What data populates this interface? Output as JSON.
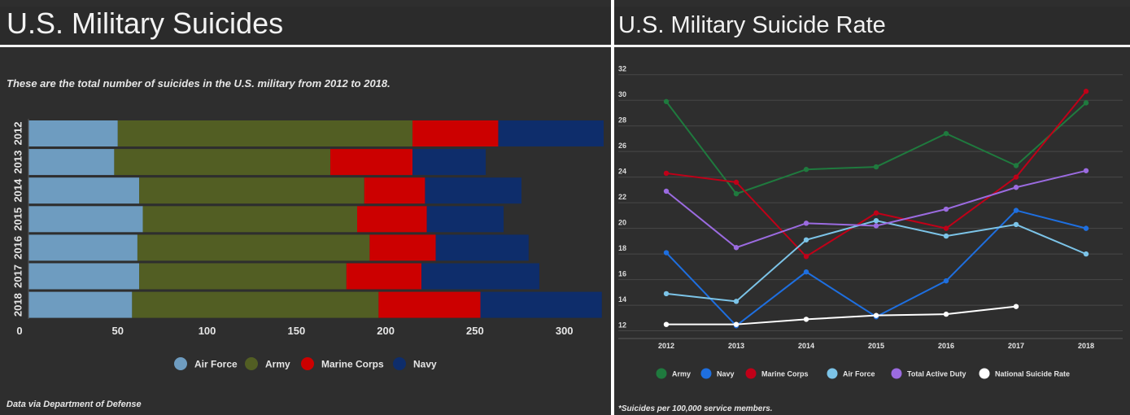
{
  "colors": {
    "air_force": "#6e9cc0",
    "army": "#525e23",
    "marine_corps": "#cc0000",
    "navy": "#0e2d6b",
    "line_army": "#1f7a3e",
    "line_navy": "#1e6fe0",
    "line_marine": "#c00018",
    "line_air_force": "#7cc4e8",
    "line_total": "#9b6be0",
    "line_national": "#ffffff"
  },
  "left": {
    "title": "U.S. Military Suicides",
    "subtitle": "These are the total number of suicides in the U.S. military from 2012 to 2018.",
    "footnote": "Data via Department of Defense"
  },
  "right": {
    "title": "U.S. Military Suicide Rate",
    "footnote": "*Suicides per 100,000 service members."
  },
  "chart_data": [
    {
      "type": "bar",
      "orientation": "horizontal",
      "stacked": true,
      "categories": [
        "2012",
        "2013",
        "2014",
        "2015",
        "2016",
        "2017",
        "2018"
      ],
      "series": [
        {
          "name": "Air Force",
          "values": [
            50,
            48,
            62,
            64,
            61,
            62,
            58
          ]
        },
        {
          "name": "Army",
          "values": [
            165,
            121,
            126,
            120,
            130,
            116,
            138
          ]
        },
        {
          "name": "Marine Corps",
          "values": [
            48,
            46,
            34,
            39,
            37,
            42,
            57
          ]
        },
        {
          "name": "Navy",
          "values": [
            59,
            41,
            54,
            43,
            52,
            66,
            68
          ]
        }
      ],
      "xlim": [
        0,
        322
      ],
      "xticks": [
        "0",
        "50",
        "100",
        "150",
        "200",
        "250",
        "300"
      ],
      "legend": "bottom"
    },
    {
      "type": "line",
      "x": [
        "2012",
        "2013",
        "2014",
        "2015",
        "2016",
        "2017",
        "2018"
      ],
      "series": [
        {
          "name": "Army",
          "values": [
            29.9,
            22.7,
            24.6,
            24.8,
            27.4,
            24.9,
            29.8
          ]
        },
        {
          "name": "Navy",
          "values": [
            18.1,
            12.4,
            16.6,
            13.1,
            15.9,
            21.4,
            20.0
          ]
        },
        {
          "name": "Marine Corps",
          "values": [
            24.3,
            23.6,
            17.8,
            21.2,
            20.0,
            24.0,
            30.7
          ]
        },
        {
          "name": "Air Force",
          "values": [
            14.9,
            14.3,
            19.1,
            20.6,
            19.4,
            20.3,
            18.0
          ]
        },
        {
          "name": "Total Active Duty",
          "values": [
            22.9,
            18.5,
            20.4,
            20.2,
            21.5,
            23.2,
            24.5
          ]
        },
        {
          "name": "National Suicide Rate",
          "values": [
            12.5,
            12.5,
            12.9,
            13.2,
            13.3,
            13.9,
            null
          ]
        }
      ],
      "ylim": [
        11.4,
        33
      ],
      "yticks": [
        "12",
        "14",
        "16",
        "18",
        "20",
        "22",
        "24",
        "26",
        "28",
        "30",
        "32"
      ],
      "grid": true,
      "legend": "bottom"
    }
  ]
}
